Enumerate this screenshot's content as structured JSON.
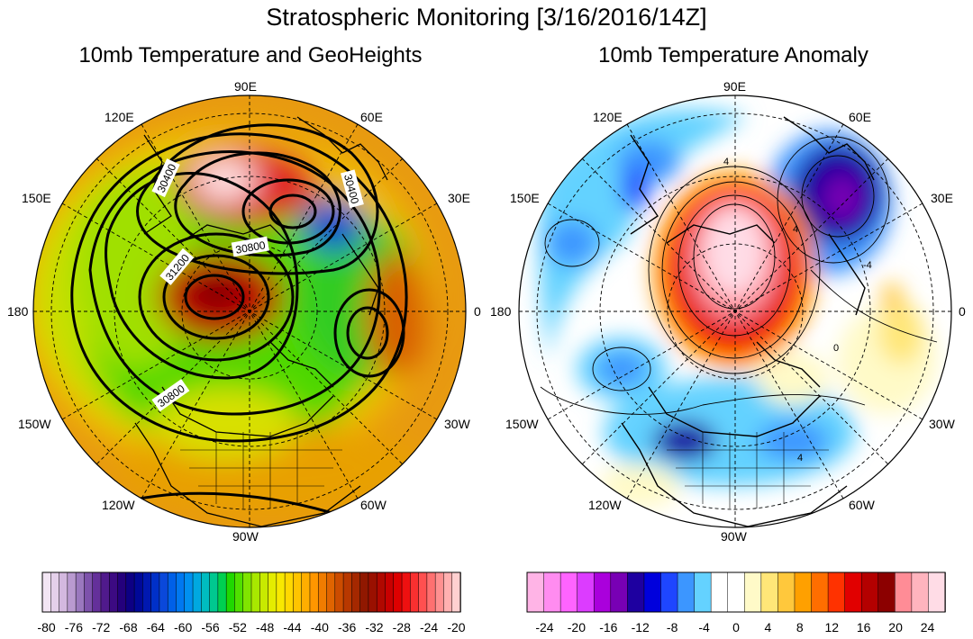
{
  "title": "Stratospheric Monitoring [3/16/2016/14Z]",
  "left_panel": {
    "title": "10mb Temperature and GeoHeights",
    "lon_labels": [
      "90E",
      "120E",
      "60E",
      "150E",
      "30E",
      "180",
      "0",
      "150W",
      "30W",
      "120W",
      "60W",
      "90W"
    ],
    "contour_labels": [
      "30400",
      "30800",
      "31200",
      "30400",
      "30800"
    ],
    "colorbar": {
      "tick_labels": [
        "-80",
        "-76",
        "-72",
        "-68",
        "-64",
        "-60",
        "-56",
        "-52",
        "-48",
        "-44",
        "-40",
        "-36",
        "-32",
        "-28",
        "-24",
        "-20"
      ],
      "colors": [
        "#f3e6f4",
        "#e4d0ea",
        "#d3b8df",
        "#b99ad0",
        "#9a78be",
        "#7d52ab",
        "#64309a",
        "#501a8c",
        "#3c0a82",
        "#24007c",
        "#0d0084",
        "#000898",
        "#0018b0",
        "#0030c8",
        "#0a48da",
        "#0060e8",
        "#0078f0",
        "#0090f0",
        "#00a8e0",
        "#00bcc0",
        "#00c890",
        "#00d050",
        "#20d800",
        "#50e000",
        "#80e400",
        "#a8e800",
        "#c8ea00",
        "#e4ec00",
        "#f8e800",
        "#ffd800",
        "#ffc400",
        "#ffae00",
        "#ff9600",
        "#f07c00",
        "#e06400",
        "#cc4c00",
        "#b83800",
        "#a42800",
        "#901800",
        "#9a1000",
        "#b00800",
        "#c80000",
        "#de0000",
        "#ee1010",
        "#f83030",
        "#ff5050",
        "#ff7070",
        "#ff9090",
        "#ffb0b0",
        "#ffd0d0"
      ]
    }
  },
  "right_panel": {
    "title": "10mb Temperature Anomaly",
    "lon_labels": [
      "90E",
      "120E",
      "60E",
      "150E",
      "30E",
      "180",
      "0",
      "150W",
      "30W",
      "120W",
      "60W",
      "90W"
    ],
    "contour_labels": [
      "4",
      "4",
      "-4",
      "4",
      "0"
    ],
    "colorbar": {
      "tick_labels": [
        "-24",
        "-20",
        "-16",
        "-12",
        "-8",
        "-4",
        "0",
        "4",
        "8",
        "12",
        "16",
        "20",
        "24"
      ],
      "colors": [
        "#ffb4e6",
        "#ff8cf0",
        "#ff64ff",
        "#dc3cff",
        "#aa00dc",
        "#7800b4",
        "#1e00a0",
        "#0000dc",
        "#1e46ff",
        "#3c96ff",
        "#64d2ff",
        "#ffffff",
        "#ffffff",
        "#fffac8",
        "#ffe678",
        "#ffc83c",
        "#ffa000",
        "#ff6e00",
        "#ff3200",
        "#e10000",
        "#b40000",
        "#8c0000",
        "#ff8c96",
        "#ffb4be",
        "#ffdce6"
      ]
    }
  }
}
